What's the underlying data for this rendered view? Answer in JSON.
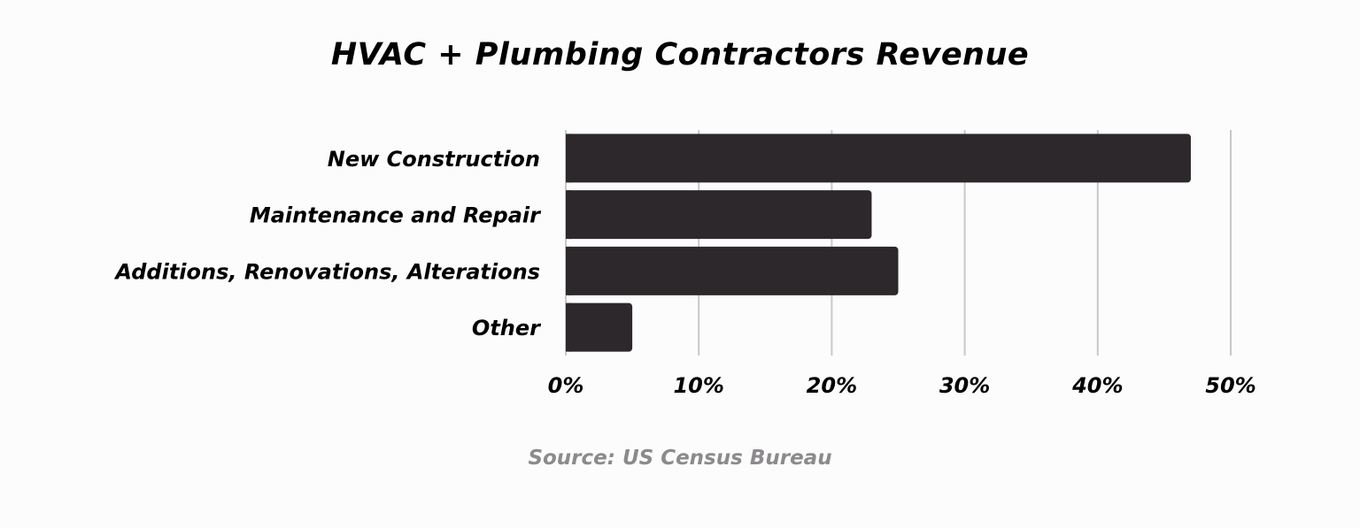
{
  "chart_data": {
    "type": "bar",
    "orientation": "horizontal",
    "title": "HVAC + Plumbing Contractors Revenue",
    "categories": [
      "New Construction",
      "Maintenance and Repair",
      "Additions, Renovations, Alterations",
      "Other"
    ],
    "values": [
      47,
      23,
      25,
      5
    ],
    "xlim": [
      0,
      50
    ],
    "xticks": [
      0,
      10,
      20,
      30,
      40,
      50
    ],
    "xtick_labels": [
      "0%",
      "10%",
      "20%",
      "30%",
      "40%",
      "50%"
    ],
    "xlabel": "",
    "ylabel": "",
    "grid": "vertical",
    "bar_color": "#2c282b",
    "grid_color": "#c8c8c8"
  },
  "source": "Source: US Census Bureau"
}
